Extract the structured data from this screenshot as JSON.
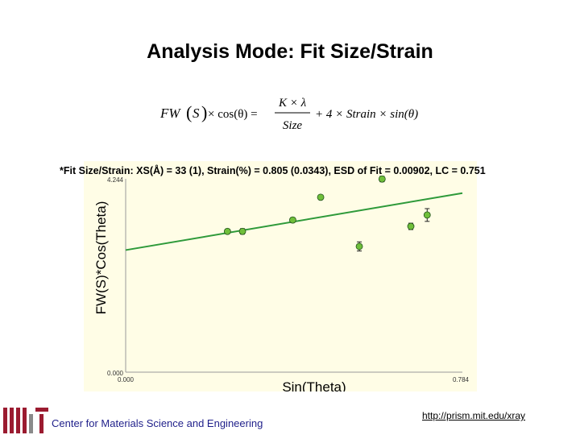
{
  "slide": {
    "title": "Analysis Mode: Fit Size/Strain"
  },
  "equation": {
    "lhs_fw": "FW",
    "lhs_s": "S",
    "cos_theta": "× cos(θ) =",
    "numerator": "K × λ",
    "denominator": "Size",
    "plus_term": "+ 4 × Strain × sin(θ)"
  },
  "fit_text": "*Fit Size/Strain: XS(Å) = 33 (1), Strain(%) = 0.805 (0.0343), ESD of Fit = 0.00902, LC = 0.751",
  "footer": {
    "org": "Center for Materials Science and Engineering",
    "url": "http://prism.mit.edu/xray"
  },
  "chart_data": {
    "type": "scatter",
    "title": "",
    "xlabel": "Sin(Theta)",
    "ylabel": "FW(S)*Cos(Theta)",
    "xlim": [
      0.0,
      0.784
    ],
    "ylim": [
      0.0,
      4.244
    ],
    "x_tick_labels": [
      "0.000",
      "0.784"
    ],
    "y_tick_labels": [
      "0.000",
      "4.244"
    ],
    "grid": false,
    "points": [
      {
        "x": 0.237,
        "y": 3.09,
        "err": 0.05
      },
      {
        "x": 0.272,
        "y": 3.09,
        "err": 0.06
      },
      {
        "x": 0.389,
        "y": 3.34,
        "err": 0.05
      },
      {
        "x": 0.454,
        "y": 3.84,
        "err": 0.05
      },
      {
        "x": 0.544,
        "y": 2.76,
        "err": 0.1
      },
      {
        "x": 0.597,
        "y": 4.24,
        "err": 0.06
      },
      {
        "x": 0.664,
        "y": 3.2,
        "err": 0.07
      },
      {
        "x": 0.702,
        "y": 3.45,
        "err": 0.14
      }
    ],
    "fit_line": {
      "x": [
        0.0,
        0.784
      ],
      "y": [
        2.68,
        3.93
      ]
    },
    "colors": {
      "plot_background": "#fffde6",
      "marker_fill": "#6fbf3a",
      "fit_line": "#2e9a3a",
      "footer_text": "#1f1f8a",
      "logo_red": "#9b1b30"
    }
  }
}
